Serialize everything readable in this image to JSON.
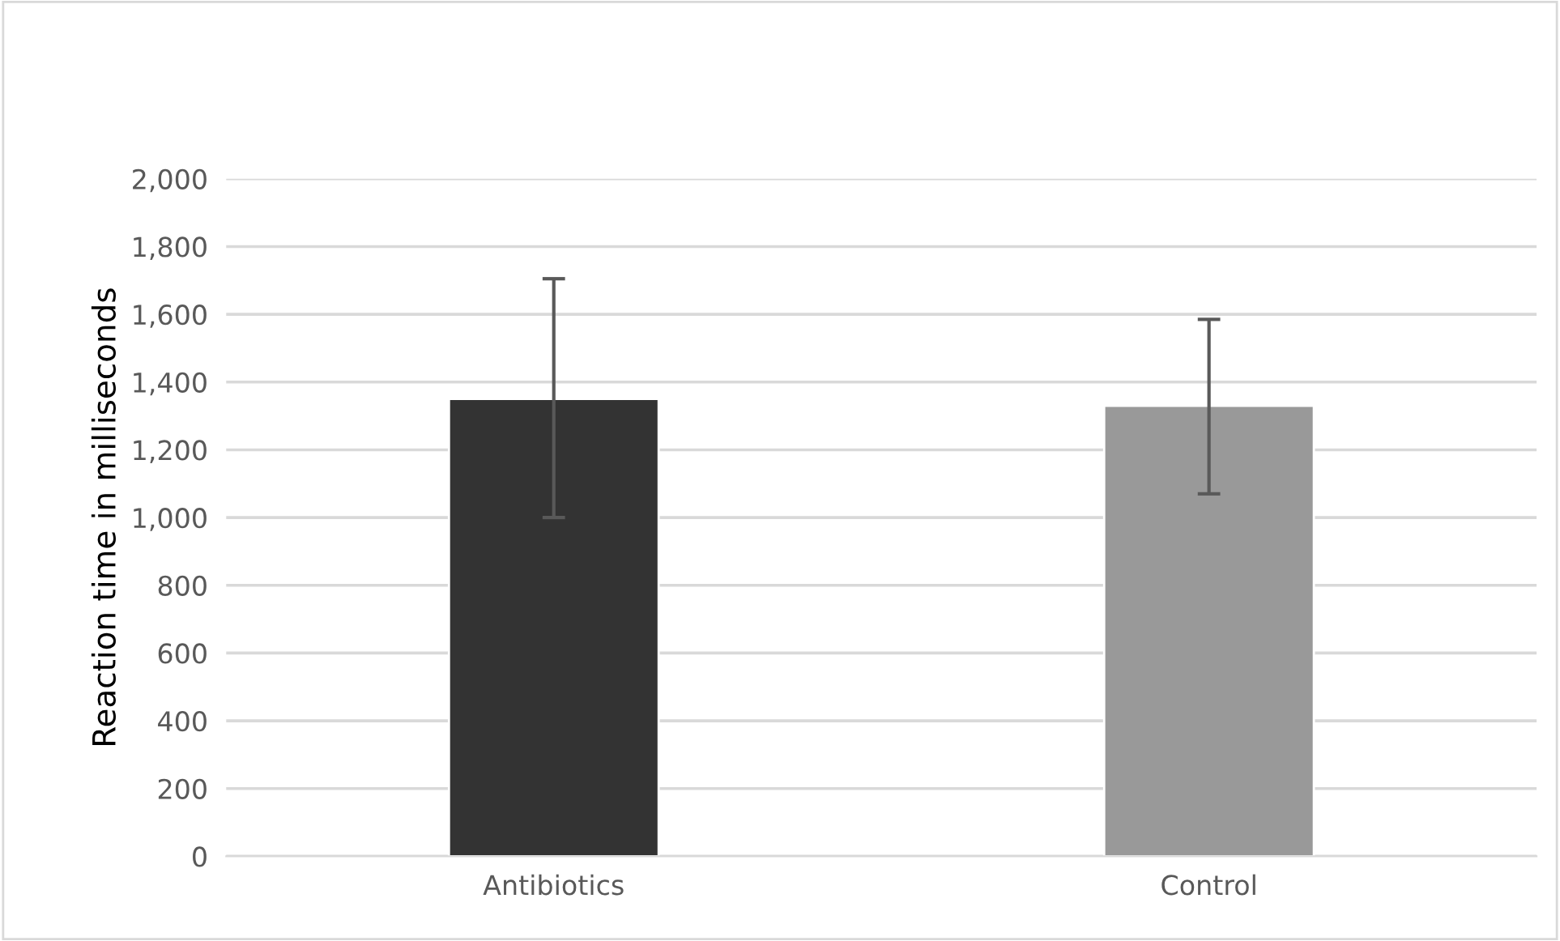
{
  "chart_data": {
    "type": "bar",
    "ylabel": "Reaction time in milliseconds",
    "categories": [
      "Antibiotics",
      "Control"
    ],
    "values": [
      1350,
      1330
    ],
    "colors": [
      "#333333",
      "#999999"
    ],
    "errors": [
      [
        1000,
        1705
      ],
      [
        1070,
        1585
      ]
    ],
    "ylim": [
      0,
      2000
    ],
    "yticks": [
      {
        "value": 0,
        "label": "0"
      },
      {
        "value": 200,
        "label": "200"
      },
      {
        "value": 400,
        "label": "400"
      },
      {
        "value": 600,
        "label": "600"
      },
      {
        "value": 800,
        "label": "800"
      },
      {
        "value": 1000,
        "label": "1,000"
      },
      {
        "value": 1200,
        "label": "1,200"
      },
      {
        "value": 1400,
        "label": "1,400"
      },
      {
        "value": 1600,
        "label": "1,600"
      },
      {
        "value": 1800,
        "label": "1,800"
      },
      {
        "value": 2000,
        "label": "2,000"
      }
    ],
    "grid": "y"
  }
}
